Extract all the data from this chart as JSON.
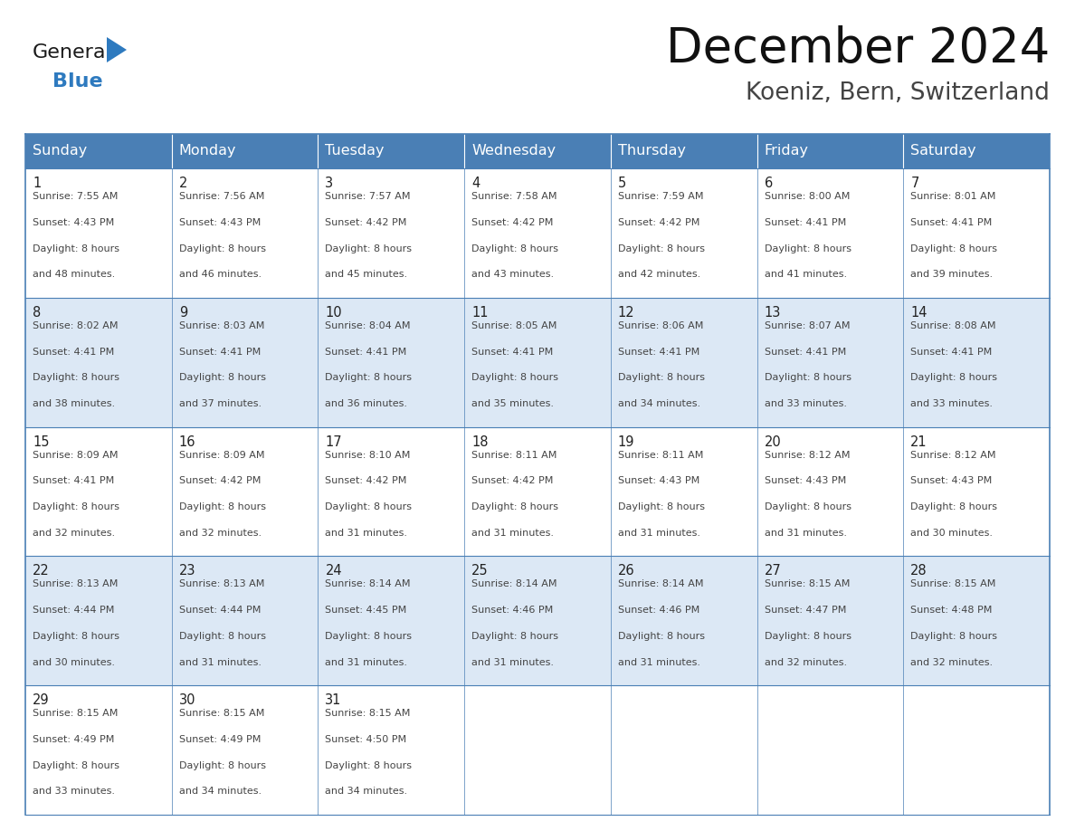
{
  "title": "December 2024",
  "subtitle": "Koeniz, Bern, Switzerland",
  "days_of_week": [
    "Sunday",
    "Monday",
    "Tuesday",
    "Wednesday",
    "Thursday",
    "Friday",
    "Saturday"
  ],
  "header_bg": "#4a7fb5",
  "header_text": "#ffffff",
  "border_color": "#4a7fb5",
  "text_color": "#444444",
  "logo_general_color": "#1a1a1a",
  "logo_blue_color": "#2e7abf",
  "calendar": [
    [
      {
        "day": 1,
        "sunrise": "7:55 AM",
        "sunset": "4:43 PM",
        "daylight_hours": 8,
        "daylight_min": "48 minutes"
      },
      {
        "day": 2,
        "sunrise": "7:56 AM",
        "sunset": "4:43 PM",
        "daylight_hours": 8,
        "daylight_min": "46 minutes"
      },
      {
        "day": 3,
        "sunrise": "7:57 AM",
        "sunset": "4:42 PM",
        "daylight_hours": 8,
        "daylight_min": "45 minutes"
      },
      {
        "day": 4,
        "sunrise": "7:58 AM",
        "sunset": "4:42 PM",
        "daylight_hours": 8,
        "daylight_min": "43 minutes"
      },
      {
        "day": 5,
        "sunrise": "7:59 AM",
        "sunset": "4:42 PM",
        "daylight_hours": 8,
        "daylight_min": "42 minutes"
      },
      {
        "day": 6,
        "sunrise": "8:00 AM",
        "sunset": "4:41 PM",
        "daylight_hours": 8,
        "daylight_min": "41 minutes"
      },
      {
        "day": 7,
        "sunrise": "8:01 AM",
        "sunset": "4:41 PM",
        "daylight_hours": 8,
        "daylight_min": "39 minutes"
      }
    ],
    [
      {
        "day": 8,
        "sunrise": "8:02 AM",
        "sunset": "4:41 PM",
        "daylight_hours": 8,
        "daylight_min": "38 minutes"
      },
      {
        "day": 9,
        "sunrise": "8:03 AM",
        "sunset": "4:41 PM",
        "daylight_hours": 8,
        "daylight_min": "37 minutes"
      },
      {
        "day": 10,
        "sunrise": "8:04 AM",
        "sunset": "4:41 PM",
        "daylight_hours": 8,
        "daylight_min": "36 minutes"
      },
      {
        "day": 11,
        "sunrise": "8:05 AM",
        "sunset": "4:41 PM",
        "daylight_hours": 8,
        "daylight_min": "35 minutes"
      },
      {
        "day": 12,
        "sunrise": "8:06 AM",
        "sunset": "4:41 PM",
        "daylight_hours": 8,
        "daylight_min": "34 minutes"
      },
      {
        "day": 13,
        "sunrise": "8:07 AM",
        "sunset": "4:41 PM",
        "daylight_hours": 8,
        "daylight_min": "33 minutes"
      },
      {
        "day": 14,
        "sunrise": "8:08 AM",
        "sunset": "4:41 PM",
        "daylight_hours": 8,
        "daylight_min": "33 minutes"
      }
    ],
    [
      {
        "day": 15,
        "sunrise": "8:09 AM",
        "sunset": "4:41 PM",
        "daylight_hours": 8,
        "daylight_min": "32 minutes"
      },
      {
        "day": 16,
        "sunrise": "8:09 AM",
        "sunset": "4:42 PM",
        "daylight_hours": 8,
        "daylight_min": "32 minutes"
      },
      {
        "day": 17,
        "sunrise": "8:10 AM",
        "sunset": "4:42 PM",
        "daylight_hours": 8,
        "daylight_min": "31 minutes"
      },
      {
        "day": 18,
        "sunrise": "8:11 AM",
        "sunset": "4:42 PM",
        "daylight_hours": 8,
        "daylight_min": "31 minutes"
      },
      {
        "day": 19,
        "sunrise": "8:11 AM",
        "sunset": "4:43 PM",
        "daylight_hours": 8,
        "daylight_min": "31 minutes"
      },
      {
        "day": 20,
        "sunrise": "8:12 AM",
        "sunset": "4:43 PM",
        "daylight_hours": 8,
        "daylight_min": "31 minutes"
      },
      {
        "day": 21,
        "sunrise": "8:12 AM",
        "sunset": "4:43 PM",
        "daylight_hours": 8,
        "daylight_min": "30 minutes"
      }
    ],
    [
      {
        "day": 22,
        "sunrise": "8:13 AM",
        "sunset": "4:44 PM",
        "daylight_hours": 8,
        "daylight_min": "30 minutes"
      },
      {
        "day": 23,
        "sunrise": "8:13 AM",
        "sunset": "4:44 PM",
        "daylight_hours": 8,
        "daylight_min": "31 minutes"
      },
      {
        "day": 24,
        "sunrise": "8:14 AM",
        "sunset": "4:45 PM",
        "daylight_hours": 8,
        "daylight_min": "31 minutes"
      },
      {
        "day": 25,
        "sunrise": "8:14 AM",
        "sunset": "4:46 PM",
        "daylight_hours": 8,
        "daylight_min": "31 minutes"
      },
      {
        "day": 26,
        "sunrise": "8:14 AM",
        "sunset": "4:46 PM",
        "daylight_hours": 8,
        "daylight_min": "31 minutes"
      },
      {
        "day": 27,
        "sunrise": "8:15 AM",
        "sunset": "4:47 PM",
        "daylight_hours": 8,
        "daylight_min": "32 minutes"
      },
      {
        "day": 28,
        "sunrise": "8:15 AM",
        "sunset": "4:48 PM",
        "daylight_hours": 8,
        "daylight_min": "32 minutes"
      }
    ],
    [
      {
        "day": 29,
        "sunrise": "8:15 AM",
        "sunset": "4:49 PM",
        "daylight_hours": 8,
        "daylight_min": "33 minutes"
      },
      {
        "day": 30,
        "sunrise": "8:15 AM",
        "sunset": "4:49 PM",
        "daylight_hours": 8,
        "daylight_min": "34 minutes"
      },
      {
        "day": 31,
        "sunrise": "8:15 AM",
        "sunset": "4:50 PM",
        "daylight_hours": 8,
        "daylight_min": "34 minutes"
      },
      null,
      null,
      null,
      null
    ]
  ],
  "figsize": [
    11.88,
    9.18
  ],
  "dpi": 100
}
